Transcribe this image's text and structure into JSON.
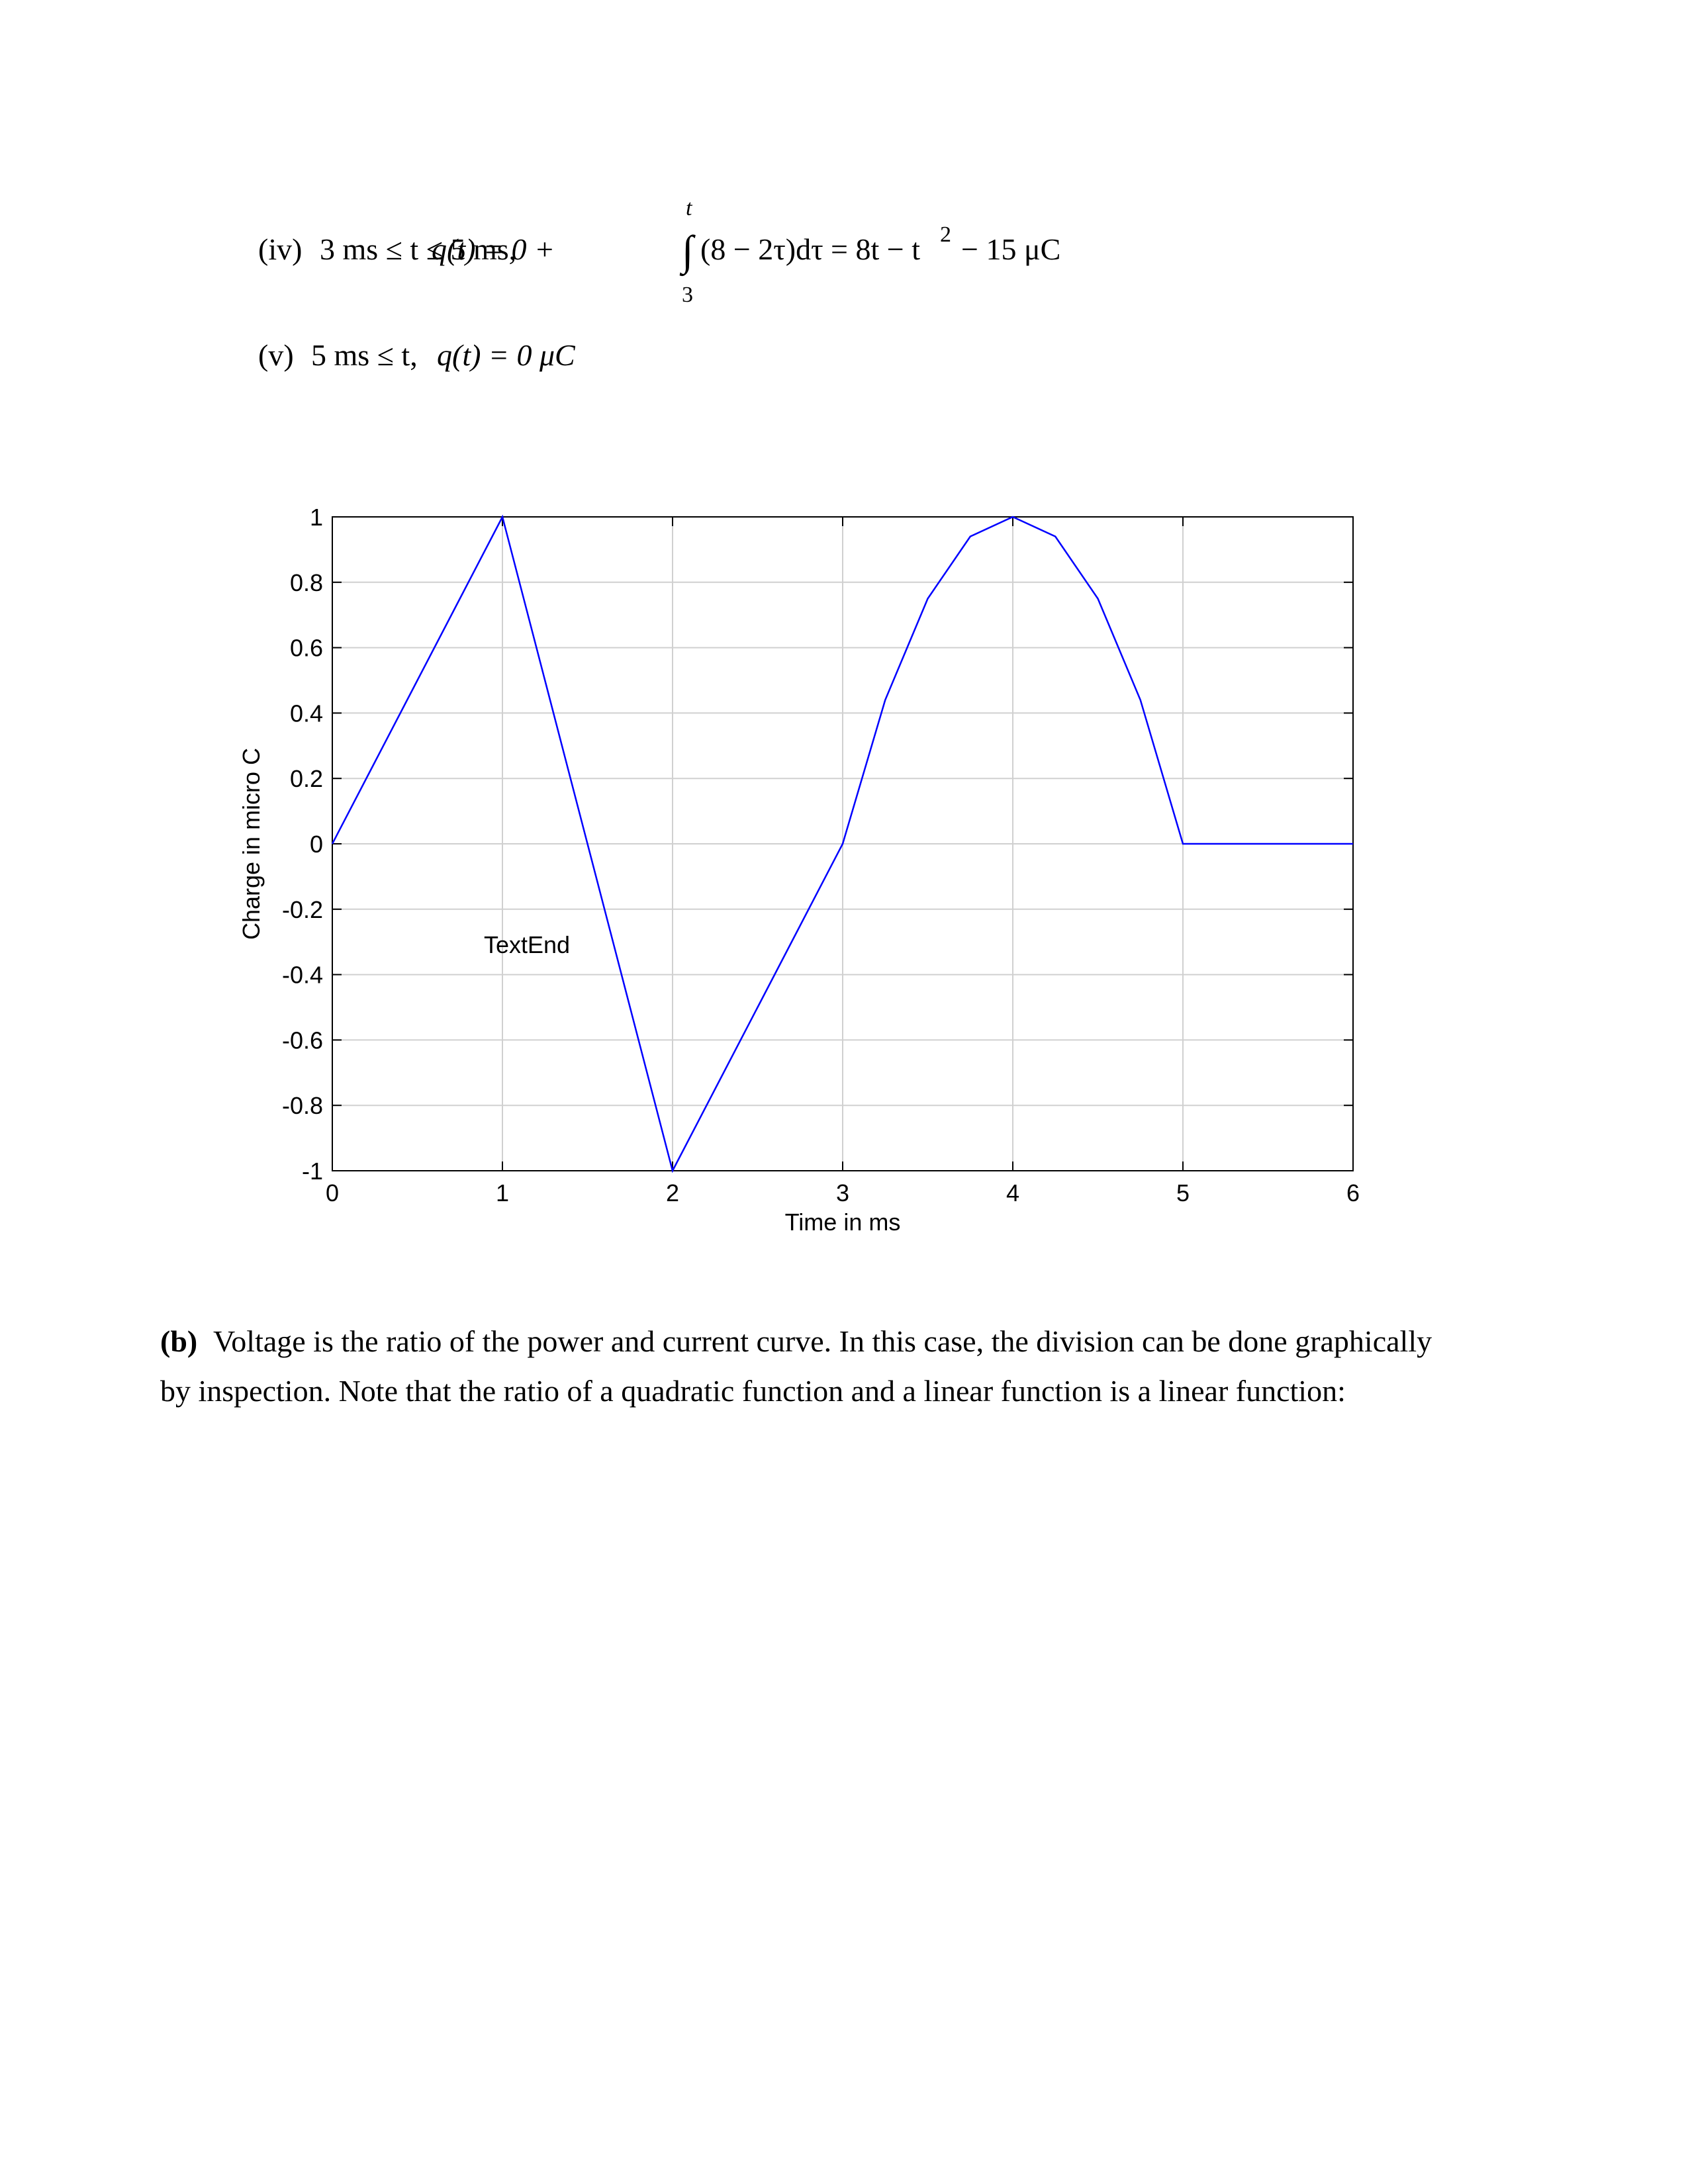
{
  "equations": [
    {
      "label": "(iv)",
      "condition": "3 ms ≤ t ≤ 5 ms,",
      "lhs": "q(t) = 0 +",
      "integral": "∫",
      "upper": "t",
      "lower": "3",
      "integrand": "(8 − 2τ)dτ = 8t − t",
      "exponent": "2",
      "rest": "− 15 μC"
    },
    {
      "label": "(v)",
      "condition": "5 ms ≤ t,",
      "lhs": "q(t) = 0 μC"
    }
  ],
  "chart_data": {
    "type": "line",
    "x_label": "Time in ms",
    "y_label": "Charge in micro C",
    "annotation": "TextEnd",
    "x": [
      0,
      0.25,
      0.5,
      0.75,
      1,
      1.25,
      1.5,
      1.75,
      2,
      2.25,
      2.5,
      2.75,
      3,
      3.25,
      3.5,
      3.75,
      4,
      4.25,
      4.5,
      4.75,
      5,
      5.25,
      5.5,
      5.75,
      6
    ],
    "values": [
      0,
      0.25,
      0.5,
      0.75,
      1,
      0.5,
      0,
      -0.5,
      -1,
      -0.75,
      -0.5,
      -0.25,
      0,
      0.44,
      0.75,
      0.94,
      1,
      0.94,
      0.75,
      0.44,
      0,
      0,
      0,
      0,
      0
    ],
    "color": "#0000ff",
    "xlim": [
      0,
      6
    ],
    "ylim": [
      -1,
      1
    ],
    "xticks": [
      0,
      1,
      2,
      3,
      4,
      5,
      6
    ],
    "yticks": [
      -1,
      -0.8,
      -0.6,
      -0.4,
      -0.2,
      0,
      0.2,
      0.4,
      0.6,
      0.8,
      1
    ],
    "grid": true
  },
  "paragraph": {
    "label": "(b)",
    "lines": [
      "Voltage is the ratio of the power and current curve. In this case, the division can be done graphically",
      "by inspection. Note that the ratio of a quadratic function and a linear function is a linear function:"
    ]
  }
}
